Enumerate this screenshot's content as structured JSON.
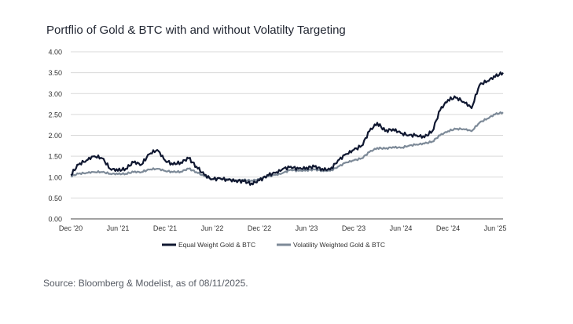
{
  "title": "Portflio of Gold & BTC with and without Volatilty Targeting",
  "source": "Source:  Bloomberg & Modelist, as of 08/11/2025.",
  "colors": {
    "equal": "#0f1730",
    "vol": "#7d8a98",
    "grid": "#d9d9d9",
    "axis": "#444444",
    "text": "#333333"
  },
  "chart_data": {
    "type": "line",
    "title": "Portflio of Gold & BTC with and without Volatilty Targeting",
    "ylim": [
      0,
      4
    ],
    "yticks": [
      "0.00",
      "0.50",
      "1.00",
      "1.50",
      "2.00",
      "2.50",
      "3.00",
      "3.50",
      "4.00"
    ],
    "xlim": [
      "2020-12",
      "2025-07"
    ],
    "x_tick_labels": [
      "Dec '20",
      "Jun '21",
      "Dec '21",
      "Jun '22",
      "Dec '22",
      "Jun '23",
      "Dec '23",
      "Jun '24",
      "Dec '24",
      "Jun '25"
    ],
    "grid": "horizontal",
    "legend_position": "bottom",
    "x": [
      "2020-12",
      "2021-01",
      "2021-02",
      "2021-03",
      "2021-04",
      "2021-05",
      "2021-06",
      "2021-07",
      "2021-08",
      "2021-09",
      "2021-10",
      "2021-11",
      "2021-12",
      "2022-01",
      "2022-02",
      "2022-03",
      "2022-04",
      "2022-05",
      "2022-06",
      "2022-07",
      "2022-08",
      "2022-09",
      "2022-10",
      "2022-11",
      "2022-12",
      "2023-01",
      "2023-02",
      "2023-03",
      "2023-04",
      "2023-05",
      "2023-06",
      "2023-07",
      "2023-08",
      "2023-09",
      "2023-10",
      "2023-11",
      "2023-12",
      "2024-01",
      "2024-02",
      "2024-03",
      "2024-04",
      "2024-05",
      "2024-06",
      "2024-07",
      "2024-08",
      "2024-09",
      "2024-10",
      "2024-11",
      "2024-12",
      "2025-01",
      "2025-02",
      "2025-03",
      "2025-04",
      "2025-05",
      "2025-06",
      "2025-07"
    ],
    "series": [
      {
        "name": "Equal Weight Gold & BTC",
        "values": [
          1.05,
          1.3,
          1.4,
          1.5,
          1.45,
          1.2,
          1.15,
          1.2,
          1.35,
          1.3,
          1.55,
          1.65,
          1.4,
          1.3,
          1.35,
          1.45,
          1.25,
          1.05,
          0.95,
          0.97,
          0.93,
          0.92,
          0.9,
          0.85,
          0.92,
          1.05,
          1.1,
          1.2,
          1.25,
          1.2,
          1.23,
          1.25,
          1.2,
          1.18,
          1.4,
          1.55,
          1.65,
          1.75,
          2.1,
          2.3,
          2.1,
          2.15,
          2.05,
          2.0,
          2.0,
          1.95,
          2.1,
          2.6,
          2.85,
          2.9,
          2.8,
          2.65,
          3.2,
          3.3,
          3.4,
          3.5
        ]
      },
      {
        "name": "Volatility Weighted Gold & BTC",
        "values": [
          1.02,
          1.08,
          1.1,
          1.12,
          1.12,
          1.08,
          1.07,
          1.08,
          1.12,
          1.12,
          1.18,
          1.2,
          1.15,
          1.12,
          1.13,
          1.2,
          1.12,
          1.02,
          0.95,
          0.97,
          0.95,
          0.93,
          0.93,
          0.92,
          0.95,
          1.02,
          1.05,
          1.1,
          1.18,
          1.15,
          1.17,
          1.18,
          1.16,
          1.15,
          1.25,
          1.35,
          1.4,
          1.45,
          1.6,
          1.7,
          1.68,
          1.72,
          1.7,
          1.75,
          1.78,
          1.8,
          1.85,
          2.0,
          2.1,
          2.15,
          2.15,
          2.1,
          2.3,
          2.4,
          2.5,
          2.55
        ]
      }
    ]
  }
}
